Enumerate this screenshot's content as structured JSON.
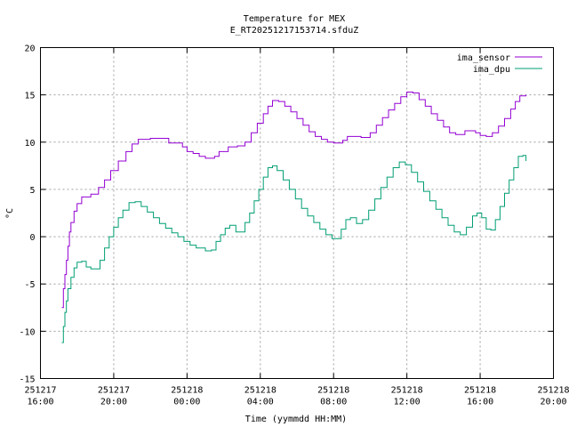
{
  "chart_data": {
    "type": "line",
    "title": [
      "Temperature for MEX",
      "E_RT20251217153714.sfduZ"
    ],
    "xlabel": "Time (yymmdd HH:MM)",
    "ylabel": "°C",
    "ylim": [
      -15,
      20
    ],
    "yticks": [
      -15,
      -10,
      -5,
      0,
      5,
      10,
      15,
      20
    ],
    "xlim": [
      "2025-12-17 16:00",
      "2025-12-18 20:00"
    ],
    "xticks": [
      {
        "time": "2025-12-17 16:00",
        "date": "251217",
        "clock": "16:00"
      },
      {
        "time": "2025-12-17 20:00",
        "date": "251217",
        "clock": "20:00"
      },
      {
        "time": "2025-12-18 00:00",
        "date": "251218",
        "clock": "00:00"
      },
      {
        "time": "2025-12-18 04:00",
        "date": "251218",
        "clock": "04:00"
      },
      {
        "time": "2025-12-18 08:00",
        "date": "251218",
        "clock": "08:00"
      },
      {
        "time": "2025-12-18 12:00",
        "date": "251218",
        "clock": "12:00"
      },
      {
        "time": "2025-12-18 16:00",
        "date": "251218",
        "clock": "16:00"
      },
      {
        "time": "2025-12-18 20:00",
        "date": "251218",
        "clock": "20:00"
      }
    ],
    "grid": true,
    "legend_position": "top-right",
    "series": [
      {
        "name": "ima_sensor",
        "color": "#9400d3",
        "points": [
          [
            "2025-12-17 17:10",
            -7.5
          ],
          [
            "2025-12-17 17:15",
            -5.5
          ],
          [
            "2025-12-17 17:20",
            -4.0
          ],
          [
            "2025-12-17 17:25",
            -2.5
          ],
          [
            "2025-12-17 17:30",
            -1.0
          ],
          [
            "2025-12-17 17:35",
            0.5
          ],
          [
            "2025-12-17 17:40",
            1.5
          ],
          [
            "2025-12-17 17:50",
            2.7
          ],
          [
            "2025-12-17 18:00",
            3.5
          ],
          [
            "2025-12-17 18:15",
            4.2
          ],
          [
            "2025-12-17 18:45",
            4.5
          ],
          [
            "2025-12-17 19:10",
            5.2
          ],
          [
            "2025-12-17 19:30",
            6.0
          ],
          [
            "2025-12-17 19:50",
            7.0
          ],
          [
            "2025-12-17 20:15",
            8.0
          ],
          [
            "2025-12-17 20:40",
            9.0
          ],
          [
            "2025-12-17 21:00",
            9.8
          ],
          [
            "2025-12-17 21:20",
            10.3
          ],
          [
            "2025-12-17 22:00",
            10.4
          ],
          [
            "2025-12-17 22:45",
            10.4
          ],
          [
            "2025-12-17 23:00",
            9.9
          ],
          [
            "2025-12-17 23:45",
            9.5
          ],
          [
            "2025-12-18 00:00",
            9.0
          ],
          [
            "2025-12-18 00:20",
            8.8
          ],
          [
            "2025-12-18 00:40",
            8.5
          ],
          [
            "2025-12-18 01:00",
            8.3
          ],
          [
            "2025-12-18 01:30",
            8.5
          ],
          [
            "2025-12-18 01:45",
            9.0
          ],
          [
            "2025-12-18 02:15",
            9.5
          ],
          [
            "2025-12-18 02:45",
            9.6
          ],
          [
            "2025-12-18 03:10",
            10.0
          ],
          [
            "2025-12-18 03:30",
            11.0
          ],
          [
            "2025-12-18 03:50",
            12.0
          ],
          [
            "2025-12-18 04:10",
            13.0
          ],
          [
            "2025-12-18 04:25",
            13.8
          ],
          [
            "2025-12-18 04:40",
            14.4
          ],
          [
            "2025-12-18 05:00",
            14.3
          ],
          [
            "2025-12-18 05:20",
            13.8
          ],
          [
            "2025-12-18 05:40",
            13.2
          ],
          [
            "2025-12-18 06:00",
            12.5
          ],
          [
            "2025-12-18 06:20",
            11.8
          ],
          [
            "2025-12-18 06:40",
            11.1
          ],
          [
            "2025-12-18 07:00",
            10.6
          ],
          [
            "2025-12-18 07:20",
            10.3
          ],
          [
            "2025-12-18 07:40",
            10.0
          ],
          [
            "2025-12-18 08:00",
            9.9
          ],
          [
            "2025-12-18 08:30",
            10.2
          ],
          [
            "2025-12-18 08:45",
            10.6
          ],
          [
            "2025-12-18 09:30",
            10.5
          ],
          [
            "2025-12-18 10:00",
            11.0
          ],
          [
            "2025-12-18 10:20",
            11.8
          ],
          [
            "2025-12-18 10:40",
            12.6
          ],
          [
            "2025-12-18 11:00",
            13.4
          ],
          [
            "2025-12-18 11:20",
            14.1
          ],
          [
            "2025-12-18 11:40",
            14.8
          ],
          [
            "2025-12-18 12:00",
            15.3
          ],
          [
            "2025-12-18 12:20",
            15.2
          ],
          [
            "2025-12-18 12:40",
            14.5
          ],
          [
            "2025-12-18 13:00",
            13.8
          ],
          [
            "2025-12-18 13:20",
            13.0
          ],
          [
            "2025-12-18 13:40",
            12.3
          ],
          [
            "2025-12-18 14:00",
            11.6
          ],
          [
            "2025-12-18 14:20",
            11.0
          ],
          [
            "2025-12-18 14:40",
            10.8
          ],
          [
            "2025-12-18 15:10",
            11.2
          ],
          [
            "2025-12-18 15:45",
            11.0
          ],
          [
            "2025-12-18 16:00",
            10.7
          ],
          [
            "2025-12-18 16:20",
            10.6
          ],
          [
            "2025-12-18 16:40",
            11.0
          ],
          [
            "2025-12-18 17:00",
            11.7
          ],
          [
            "2025-12-18 17:20",
            12.5
          ],
          [
            "2025-12-18 17:40",
            13.5
          ],
          [
            "2025-12-18 17:55",
            14.3
          ],
          [
            "2025-12-18 18:10",
            14.9
          ],
          [
            "2025-12-18 18:30",
            15.0
          ]
        ]
      },
      {
        "name": "ima_dpu",
        "color": "#009e73",
        "points": [
          [
            "2025-12-17 17:10",
            -11.2
          ],
          [
            "2025-12-17 17:15",
            -9.5
          ],
          [
            "2025-12-17 17:20",
            -8.0
          ],
          [
            "2025-12-17 17:25",
            -6.8
          ],
          [
            "2025-12-17 17:30",
            -5.5
          ],
          [
            "2025-12-17 17:40",
            -4.3
          ],
          [
            "2025-12-17 17:50",
            -3.3
          ],
          [
            "2025-12-17 18:00",
            -2.7
          ],
          [
            "2025-12-17 18:15",
            -2.6
          ],
          [
            "2025-12-17 18:30",
            -3.2
          ],
          [
            "2025-12-17 18:45",
            -3.4
          ],
          [
            "2025-12-17 19:00",
            -3.4
          ],
          [
            "2025-12-17 19:15",
            -2.5
          ],
          [
            "2025-12-17 19:30",
            -1.2
          ],
          [
            "2025-12-17 19:45",
            0.0
          ],
          [
            "2025-12-17 20:00",
            1.0
          ],
          [
            "2025-12-17 20:15",
            2.0
          ],
          [
            "2025-12-17 20:30",
            2.8
          ],
          [
            "2025-12-17 20:50",
            3.6
          ],
          [
            "2025-12-17 21:10",
            3.7
          ],
          [
            "2025-12-17 21:30",
            3.2
          ],
          [
            "2025-12-17 21:50",
            2.6
          ],
          [
            "2025-12-17 22:10",
            2.0
          ],
          [
            "2025-12-17 22:30",
            1.4
          ],
          [
            "2025-12-17 22:50",
            0.9
          ],
          [
            "2025-12-17 23:10",
            0.4
          ],
          [
            "2025-12-17 23:30",
            0.0
          ],
          [
            "2025-12-17 23:50",
            -0.5
          ],
          [
            "2025-12-18 00:10",
            -0.9
          ],
          [
            "2025-12-18 00:30",
            -1.2
          ],
          [
            "2025-12-18 01:00",
            -1.5
          ],
          [
            "2025-12-18 01:20",
            -1.4
          ],
          [
            "2025-12-18 01:35",
            -0.5
          ],
          [
            "2025-12-18 01:50",
            0.2
          ],
          [
            "2025-12-18 02:05",
            0.9
          ],
          [
            "2025-12-18 02:20",
            1.2
          ],
          [
            "2025-12-18 02:40",
            0.5
          ],
          [
            "2025-12-18 02:55",
            0.5
          ],
          [
            "2025-12-18 03:10",
            1.5
          ],
          [
            "2025-12-18 03:25",
            2.5
          ],
          [
            "2025-12-18 03:40",
            3.8
          ],
          [
            "2025-12-18 03:55",
            5.0
          ],
          [
            "2025-12-18 04:10",
            6.3
          ],
          [
            "2025-12-18 04:25",
            7.3
          ],
          [
            "2025-12-18 04:40",
            7.5
          ],
          [
            "2025-12-18 04:55",
            7.0
          ],
          [
            "2025-12-18 05:15",
            6.0
          ],
          [
            "2025-12-18 05:35",
            5.0
          ],
          [
            "2025-12-18 05:55",
            4.0
          ],
          [
            "2025-12-18 06:15",
            3.0
          ],
          [
            "2025-12-18 06:35",
            2.2
          ],
          [
            "2025-12-18 06:55",
            1.5
          ],
          [
            "2025-12-18 07:15",
            0.8
          ],
          [
            "2025-12-18 07:35",
            0.2
          ],
          [
            "2025-12-18 07:55",
            -0.2
          ],
          [
            "2025-12-18 08:10",
            -0.2
          ],
          [
            "2025-12-18 08:25",
            0.8
          ],
          [
            "2025-12-18 08:40",
            1.8
          ],
          [
            "2025-12-18 08:55",
            2.0
          ],
          [
            "2025-12-18 09:15",
            1.4
          ],
          [
            "2025-12-18 09:35",
            1.8
          ],
          [
            "2025-12-18 09:55",
            2.8
          ],
          [
            "2025-12-18 10:15",
            4.0
          ],
          [
            "2025-12-18 10:35",
            5.2
          ],
          [
            "2025-12-18 10:55",
            6.3
          ],
          [
            "2025-12-18 11:15",
            7.3
          ],
          [
            "2025-12-18 11:35",
            7.9
          ],
          [
            "2025-12-18 11:55",
            7.6
          ],
          [
            "2025-12-18 12:15",
            6.8
          ],
          [
            "2025-12-18 12:35",
            5.8
          ],
          [
            "2025-12-18 12:55",
            4.8
          ],
          [
            "2025-12-18 13:15",
            3.8
          ],
          [
            "2025-12-18 13:35",
            2.9
          ],
          [
            "2025-12-18 13:55",
            2.0
          ],
          [
            "2025-12-18 14:15",
            1.2
          ],
          [
            "2025-12-18 14:35",
            0.5
          ],
          [
            "2025-12-18 14:55",
            0.2
          ],
          [
            "2025-12-18 15:15",
            1.0
          ],
          [
            "2025-12-18 15:35",
            2.2
          ],
          [
            "2025-12-18 15:50",
            2.5
          ],
          [
            "2025-12-18 16:05",
            2.0
          ],
          [
            "2025-12-18 16:20",
            0.8
          ],
          [
            "2025-12-18 16:35",
            0.7
          ],
          [
            "2025-12-18 16:50",
            1.8
          ],
          [
            "2025-12-18 17:05",
            3.2
          ],
          [
            "2025-12-18 17:20",
            4.6
          ],
          [
            "2025-12-18 17:35",
            6.0
          ],
          [
            "2025-12-18 17:50",
            7.3
          ],
          [
            "2025-12-18 18:05",
            8.5
          ],
          [
            "2025-12-18 18:20",
            8.6
          ],
          [
            "2025-12-18 18:30",
            8.0
          ]
        ]
      }
    ]
  }
}
